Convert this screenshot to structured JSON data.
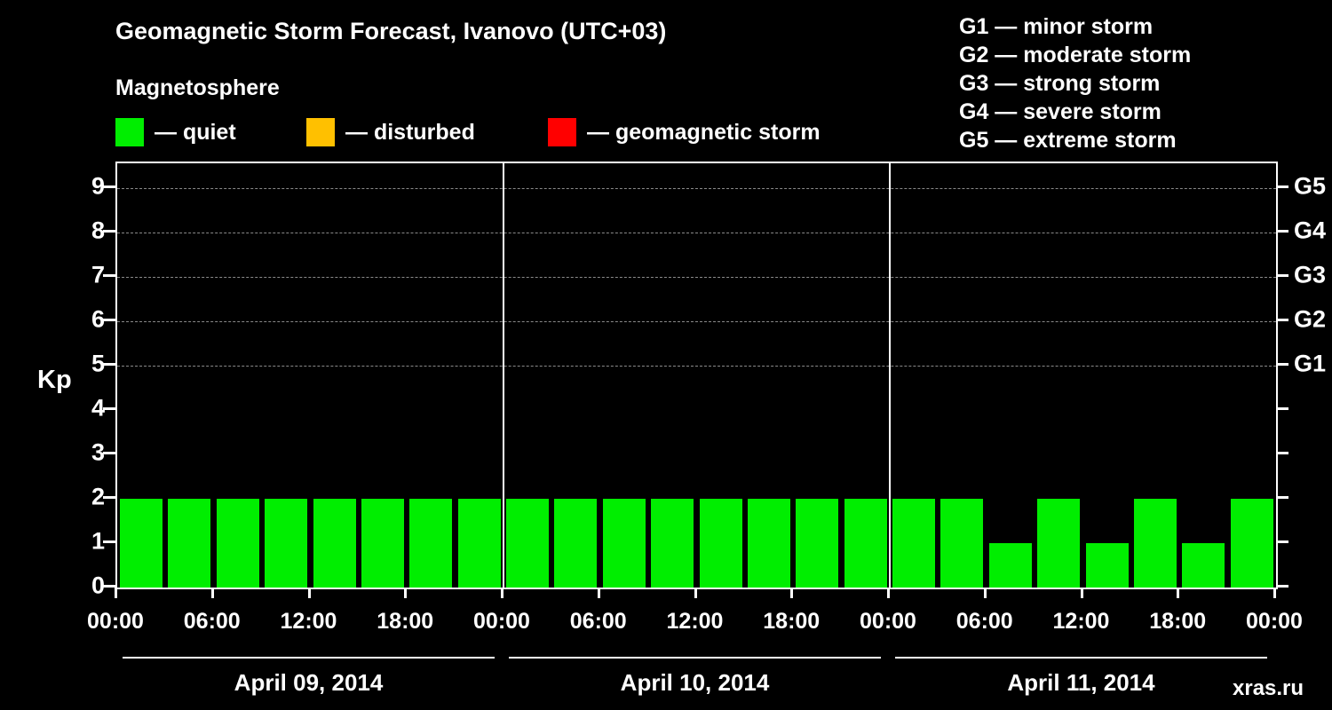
{
  "header": {
    "title": "Geomagnetic Storm Forecast, Ivanovo (UTC+03)",
    "legend_title": "Magnetosphere",
    "legend": [
      {
        "name": "quiet",
        "label": "— quiet",
        "color": "#00ee00"
      },
      {
        "name": "disturbed",
        "label": "— disturbed",
        "color": "#ffc000"
      },
      {
        "name": "storm",
        "label": "— geomagnetic storm",
        "color": "#ff0000"
      }
    ],
    "storm_scale": [
      "G1 — minor storm",
      "G2 — moderate storm",
      "G3 — strong storm",
      "G4 — severe storm",
      "G5 — extreme storm"
    ]
  },
  "chart_data": {
    "type": "bar",
    "title": "Geomagnetic Storm Forecast, Ivanovo (UTC+03)",
    "ylabel": "Kp",
    "ylim": [
      0,
      9.5
    ],
    "yticks": [
      0,
      1,
      2,
      3,
      4,
      5,
      6,
      7,
      8,
      9
    ],
    "gridlines_kp": [
      5,
      6,
      7,
      8,
      9
    ],
    "right_axis_labels": [
      {
        "label": "G5",
        "kp": 9
      },
      {
        "label": "G4",
        "kp": 8
      },
      {
        "label": "G3",
        "kp": 7
      },
      {
        "label": "G2",
        "kp": 6
      },
      {
        "label": "G1",
        "kp": 5
      }
    ],
    "bin_hours": 3,
    "colors": {
      "quiet": "#00ee00",
      "disturbed": "#ffc000",
      "storm": "#ff0000"
    },
    "days": [
      {
        "date": "April 09, 2014",
        "values": [
          2,
          2,
          2,
          2,
          2,
          2,
          2,
          2
        ]
      },
      {
        "date": "April 10, 2014",
        "values": [
          2,
          2,
          2,
          2,
          2,
          2,
          2,
          2
        ]
      },
      {
        "date": "April 11, 2014",
        "values": [
          2,
          2,
          1,
          2,
          1,
          2,
          1,
          2
        ]
      }
    ],
    "x_tick_labels": [
      "00:00",
      "06:00",
      "12:00",
      "18:00",
      "00:00",
      "06:00",
      "12:00",
      "18:00",
      "00:00",
      "06:00",
      "12:00",
      "18:00",
      "00:00"
    ],
    "legend_position": "top-left",
    "grid": "dashed horizontal at Kp 5-9 only"
  },
  "watermark": "xras.ru"
}
